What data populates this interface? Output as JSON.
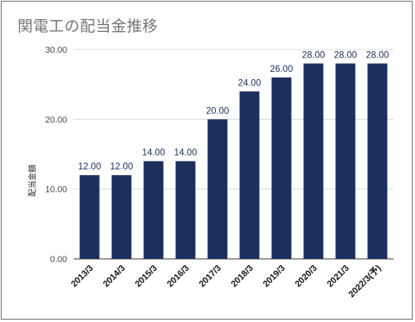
{
  "chart_data": {
    "type": "bar",
    "title": "関電工の配当金推移",
    "xlabel": "",
    "ylabel": "配当金額",
    "categories": [
      "2013/3",
      "2014/3",
      "2015/3",
      "2016/3",
      "2017/3",
      "2018/3",
      "2019/3",
      "2020/3",
      "2021/3",
      "2022/3(予)"
    ],
    "values": [
      12,
      12,
      14,
      14,
      20,
      24,
      26,
      28,
      28,
      28
    ],
    "data_labels": [
      "12.00",
      "12.00",
      "14.00",
      "14.00",
      "20.00",
      "24.00",
      "26.00",
      "28.00",
      "28.00",
      "28.00"
    ],
    "ylim": [
      0,
      30
    ],
    "yticks": [
      0,
      10,
      20,
      30
    ],
    "ytick_labels": [
      "0.00",
      "10.00",
      "20.00",
      "30.00"
    ],
    "grid": true,
    "legend": "none",
    "colors": {
      "bar": "#1c3060",
      "grid": "#d9d9d9",
      "data_label": "#1c3060"
    }
  }
}
